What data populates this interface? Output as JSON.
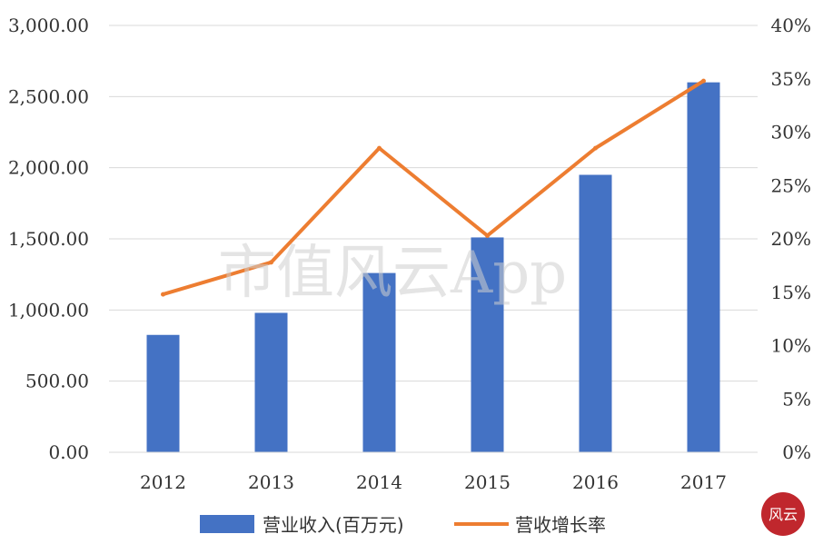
{
  "chart_data": {
    "type": "bar",
    "categories": [
      "2012",
      "2013",
      "2014",
      "2015",
      "2016",
      "2017"
    ],
    "series": [
      {
        "name": "营业收入(百万元)",
        "type": "bar",
        "axis": "left",
        "color": "#4472C4",
        "values": [
          825,
          980,
          1260,
          1510,
          1950,
          2600
        ]
      },
      {
        "name": "营收增长率",
        "type": "line",
        "axis": "right",
        "color": "#ED7D31",
        "values": [
          14.8,
          17.8,
          28.5,
          20.3,
          28.5,
          34.8
        ]
      }
    ],
    "y_left": {
      "ylim": [
        0,
        3000
      ],
      "ticks": [
        "0.00",
        "500.00",
        "1,000.00",
        "1,500.00",
        "2,000.00",
        "2,500.00",
        "3,000.00"
      ]
    },
    "y_right": {
      "ylim": [
        0,
        40
      ],
      "ticks": [
        "0%",
        "5%",
        "10%",
        "15%",
        "20%",
        "25%",
        "30%",
        "35%",
        "40%"
      ]
    },
    "grid": true,
    "legend": "bottom",
    "title": "",
    "xlabel": "",
    "ylabel": ""
  },
  "watermark": {
    "text": "市值风云App",
    "seal_text": "风云"
  }
}
